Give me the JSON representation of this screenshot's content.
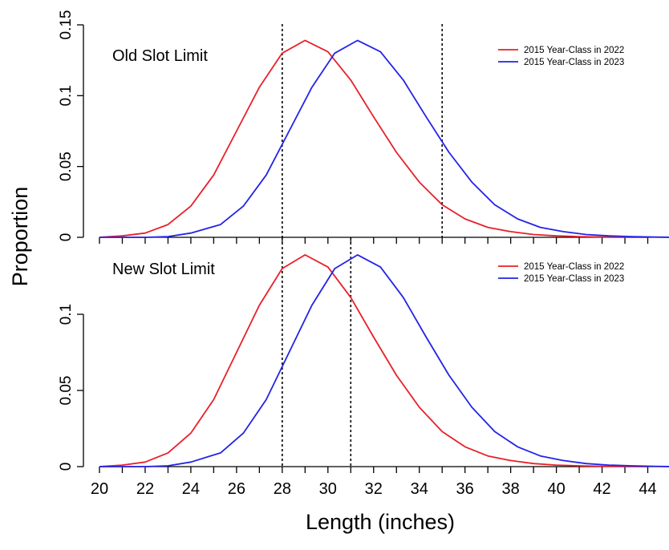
{
  "figure": {
    "ylabel": "Proportion",
    "xlabel": "Length (inches)"
  },
  "chart_data": [
    {
      "type": "line",
      "title": "Old Slot Limit",
      "xlabel": "Length (inches)",
      "ylabel": "Proportion",
      "xlim": [
        20,
        45
      ],
      "ylim": [
        0,
        0.15
      ],
      "xticks": [
        20,
        22,
        24,
        26,
        28,
        30,
        32,
        34,
        36,
        38,
        40,
        42,
        44
      ],
      "yticks": [
        0,
        0.05,
        0.1,
        0.15
      ],
      "ytick_labels": [
        "0",
        "0.05",
        "0.1",
        "0.15"
      ],
      "legend_position": "top-right",
      "vlines": [
        28,
        35
      ],
      "series": [
        {
          "name": "2015 Year-Class in 2022",
          "color": "#e8202a",
          "x": [
            20,
            21,
            22,
            23,
            24,
            25,
            26,
            27,
            28,
            29,
            30,
            31,
            32,
            33,
            34,
            35,
            36,
            37,
            38,
            39,
            40,
            41,
            42,
            43,
            44
          ],
          "y": [
            0.0,
            0.001,
            0.003,
            0.009,
            0.022,
            0.044,
            0.075,
            0.106,
            0.13,
            0.139,
            0.131,
            0.111,
            0.085,
            0.06,
            0.039,
            0.023,
            0.013,
            0.007,
            0.004,
            0.002,
            0.001,
            0.0005,
            0.0002,
            0.0001,
            0.0
          ]
        },
        {
          "name": "2015 Year-Class in 2023",
          "color": "#2323e8",
          "x": [
            20,
            21,
            22,
            23,
            24,
            25.3,
            26.3,
            27.3,
            28.3,
            29.3,
            30.3,
            31.3,
            32.3,
            33.3,
            34.3,
            35.3,
            36.3,
            37.3,
            38.3,
            39.3,
            40.3,
            41.3,
            42.3,
            43.3,
            44.3,
            45
          ],
          "y": [
            0.0,
            0.0,
            0.0,
            0.0005,
            0.003,
            0.009,
            0.022,
            0.044,
            0.075,
            0.106,
            0.13,
            0.139,
            0.131,
            0.111,
            0.085,
            0.06,
            0.039,
            0.023,
            0.013,
            0.007,
            0.004,
            0.002,
            0.001,
            0.0005,
            0.0002,
            0.0
          ]
        }
      ]
    },
    {
      "type": "line",
      "title": "New Slot Limit",
      "xlabel": "Length (inches)",
      "ylabel": "Proportion",
      "xlim": [
        20,
        45
      ],
      "ylim": [
        0,
        0.14
      ],
      "xticks": [
        20,
        22,
        24,
        26,
        28,
        30,
        32,
        34,
        36,
        38,
        40,
        42,
        44
      ],
      "xtick_labels": [
        "20",
        "22",
        "24",
        "26",
        "28",
        "30",
        "32",
        "34",
        "36",
        "38",
        "40",
        "42",
        "44"
      ],
      "yticks": [
        0,
        0.05,
        0.1
      ],
      "ytick_labels": [
        "0",
        "0.05",
        "0.1"
      ],
      "legend_position": "top-right",
      "vlines": [
        28,
        31
      ],
      "series": [
        {
          "name": "2015 Year-Class in 2022",
          "color": "#e8202a",
          "x": [
            20,
            21,
            22,
            23,
            24,
            25,
            26,
            27,
            28,
            29,
            30,
            31,
            32,
            33,
            34,
            35,
            36,
            37,
            38,
            39,
            40,
            41,
            42,
            43,
            44
          ],
          "y": [
            0.0,
            0.001,
            0.003,
            0.009,
            0.022,
            0.044,
            0.075,
            0.106,
            0.13,
            0.139,
            0.131,
            0.111,
            0.085,
            0.06,
            0.039,
            0.023,
            0.013,
            0.007,
            0.004,
            0.002,
            0.001,
            0.0005,
            0.0002,
            0.0001,
            0.0
          ]
        },
        {
          "name": "2015 Year-Class in 2023",
          "color": "#2323e8",
          "x": [
            20,
            21,
            22,
            23,
            24,
            25.3,
            26.3,
            27.3,
            28.3,
            29.3,
            30.3,
            31.3,
            32.3,
            33.3,
            34.3,
            35.3,
            36.3,
            37.3,
            38.3,
            39.3,
            40.3,
            41.3,
            42.3,
            43.3,
            44.3,
            45
          ],
          "y": [
            0.0,
            0.0,
            0.0,
            0.0005,
            0.003,
            0.009,
            0.022,
            0.044,
            0.075,
            0.106,
            0.13,
            0.139,
            0.131,
            0.111,
            0.085,
            0.06,
            0.039,
            0.023,
            0.013,
            0.007,
            0.004,
            0.002,
            0.001,
            0.0005,
            0.0002,
            0.0
          ]
        }
      ]
    }
  ]
}
